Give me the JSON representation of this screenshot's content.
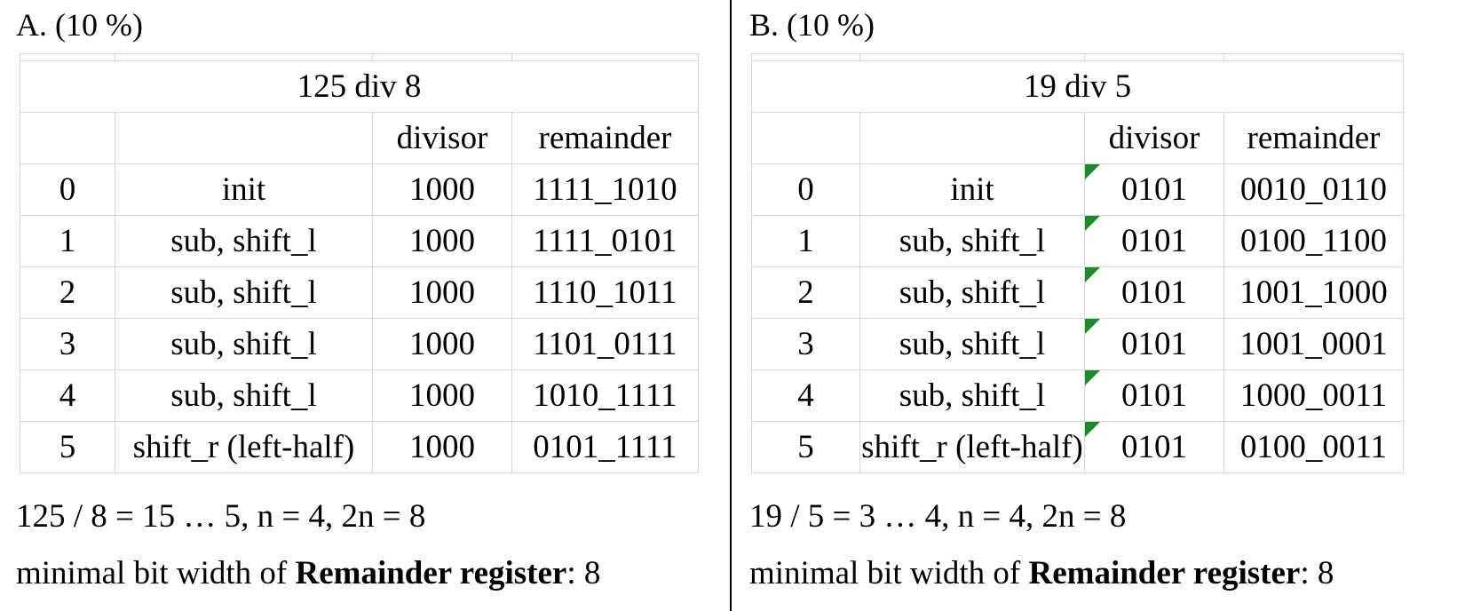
{
  "panels": [
    {
      "label": "A. (10 %)",
      "title": "125 div 8",
      "headers": [
        "",
        "",
        "divisor",
        "remainder"
      ],
      "rows": [
        [
          "0",
          "init",
          "1000",
          "1111_1010"
        ],
        [
          "1",
          "sub, shift_l",
          "1000",
          "1111_0101"
        ],
        [
          "2",
          "sub, shift_l",
          "1000",
          "1110_1011"
        ],
        [
          "3",
          "sub, shift_l",
          "1000",
          "1101_0111"
        ],
        [
          "4",
          "sub, shift_l",
          "1000",
          "1010_1111"
        ],
        [
          "5",
          "shift_r (left-half)",
          "1000",
          "0101_1111"
        ]
      ],
      "summary": "125 / 8 = 15 … 5, n = 4, 2n = 8",
      "min_width_prefix": "minimal bit width of ",
      "min_width_bold": "Remainder register",
      "min_width_suffix": ": 8"
    },
    {
      "label": "B. (10 %)",
      "title": "19 div 5",
      "headers": [
        "",
        "",
        "divisor",
        "remainder"
      ],
      "rows": [
        [
          "0",
          "init",
          "0101",
          "0010_0110"
        ],
        [
          "1",
          "sub, shift_l",
          "0101",
          "0100_1100"
        ],
        [
          "2",
          "sub, shift_l",
          "0101",
          "1001_1000"
        ],
        [
          "3",
          "sub, shift_l",
          "0101",
          "1001_0001"
        ],
        [
          "4",
          "sub, shift_l",
          "0101",
          "1000_0011"
        ],
        [
          "5",
          "shift_r (left-half)",
          "0101",
          "0100_0011"
        ]
      ],
      "summary": "19 / 5 = 3 … 4, n = 4, 2n = 8",
      "min_width_prefix": "minimal bit width of ",
      "min_width_bold": "Remainder register",
      "min_width_suffix": ": 8"
    }
  ],
  "colors": {
    "grid": "#d6d6d6",
    "comment_marker": "#1a8a2a",
    "divider": "#000000"
  }
}
